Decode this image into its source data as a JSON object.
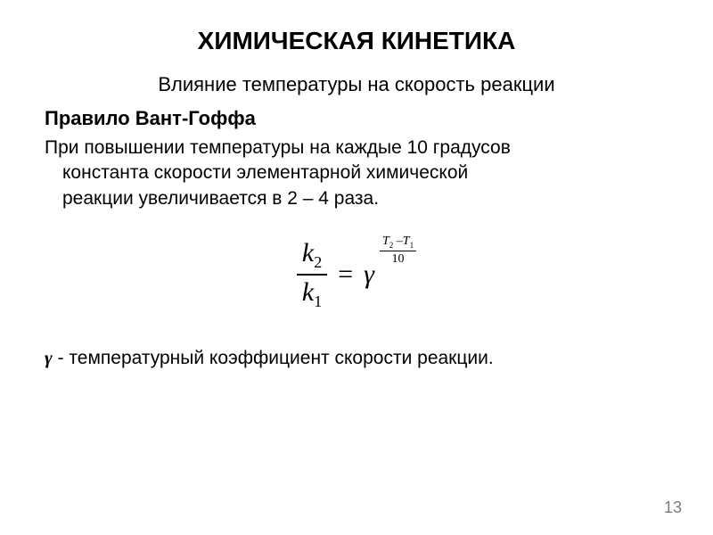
{
  "title": "ХИМИЧЕСКАЯ КИНЕТИКА",
  "subtitle": "Влияние температуры на скорость реакции",
  "ruleTitle": "Правило Вант-Гоффа",
  "bodyLine1": "При повышении температуры на каждые 10 градусов",
  "bodyLine2": "константа скорости элементарной химической",
  "bodyLine3": "реакции увеличивается в 2 – 4 раза.",
  "formula": {
    "k": "k",
    "sub1": "1",
    "sub2": "2",
    "gamma": "γ",
    "equals": "=",
    "T": "T",
    "minus": "–",
    "expDenom": "10"
  },
  "coefGamma": "γ",
  "coefText": " - температурный коэффициент скорости реакции.",
  "pageNumber": "13",
  "colors": {
    "background": "#ffffff",
    "text": "#000000",
    "pageNum": "#7a7a7a"
  },
  "fonts": {
    "bodyFamily": "Arial, sans-serif",
    "formulaFamily": "Times New Roman, serif",
    "titleSize": 28,
    "subtitleSize": 22,
    "bodySize": 21,
    "formulaSize": 30,
    "expSize": 14,
    "pageNumSize": 18
  }
}
